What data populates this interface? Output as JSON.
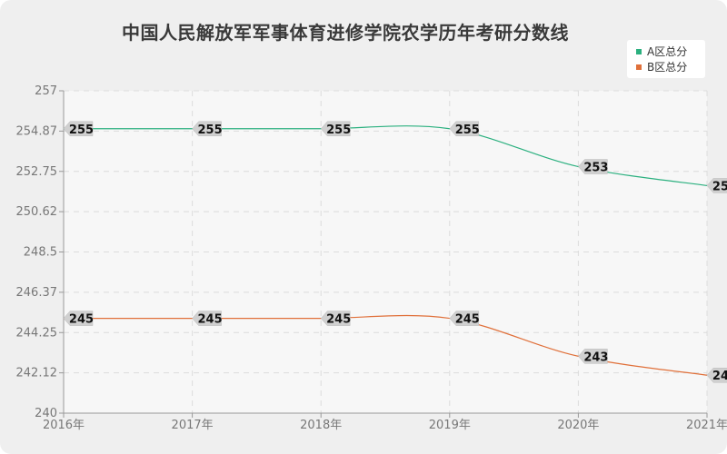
{
  "chart_data": {
    "type": "line",
    "title": "中国人民解放军军事体育进修学院农学历年考研分数线",
    "categories": [
      "2016年",
      "2017年",
      "2018年",
      "2019年",
      "2020年",
      "2021年"
    ],
    "series": [
      {
        "name": "A区总分",
        "color": "#2bb07f",
        "values": [
          255,
          255,
          255,
          255,
          253,
          252
        ]
      },
      {
        "name": "B区总分",
        "color": "#e0703a",
        "values": [
          245,
          245,
          245,
          245,
          243,
          242
        ]
      }
    ],
    "y_ticks": [
      "257",
      "254.87",
      "252.75",
      "250.62",
      "248.5",
      "246.37",
      "244.25",
      "242.12",
      "240"
    ],
    "ylim": [
      240,
      257
    ],
    "grid": true,
    "legend_position": "top-right"
  }
}
